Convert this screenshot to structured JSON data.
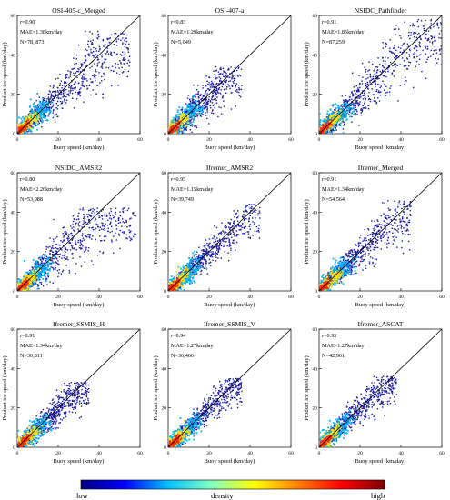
{
  "figure": {
    "colorbar": {
      "low_label": "low",
      "mid_label": "density",
      "high_label": "high",
      "colors": [
        "#00007f",
        "#0000ff",
        "#00bfff",
        "#7fffbf",
        "#ffff00",
        "#ff7f00",
        "#ff0000",
        "#7f0000"
      ]
    },
    "palette": {
      "sparse": "#1a1aa8",
      "mid": "#00b4ff",
      "dense": "#ffe000",
      "peak": "#ff2a00",
      "line": "#000000"
    }
  },
  "chart_data": [
    {
      "type": "scatter",
      "title": "OSI-405-c_Merged",
      "xlabel": "Buoy speed (km/day)",
      "ylabel": "Product ice speed (km/day)",
      "xlim": [
        0,
        60
      ],
      "ylim": [
        0,
        60
      ],
      "xticks": [
        "0",
        "20",
        "40",
        "60"
      ],
      "yticks": [
        "0",
        "20",
        "40",
        "60"
      ],
      "stats": {
        "r": "r=0.90",
        "mae": "MAE=1.38km/day",
        "n": "N=78, 873"
      },
      "max_x": 55,
      "max_y": 52,
      "spread": 0.34,
      "reference_line": "1:1"
    },
    {
      "type": "scatter",
      "title": "OSI-407-a",
      "xlabel": "Buoy speed (km/day)",
      "ylabel": "Product ice speed (km/day)",
      "xlim": [
        0,
        60
      ],
      "ylim": [
        0,
        60
      ],
      "xticks": [
        "0",
        "20",
        "40",
        "60"
      ],
      "yticks": [
        "0",
        "20",
        "40",
        "60"
      ],
      "stats": {
        "r": "r=0.83",
        "mae": "MAE=1.29km/day",
        "n": "N=5,049"
      },
      "max_x": 36,
      "max_y": 34,
      "spread": 0.4,
      "reference_line": "1:1"
    },
    {
      "type": "scatter",
      "title": "NSIDC_Pathfinder",
      "xlabel": "Buoy speed (km/day)",
      "ylabel": "Product ice speed (km/day)",
      "xlim": [
        0,
        60
      ],
      "ylim": [
        0,
        60
      ],
      "xticks": [
        "0",
        "20",
        "40",
        "60"
      ],
      "yticks": [
        "0",
        "20",
        "40",
        "60"
      ],
      "stats": {
        "r": "r=0.91",
        "mae": "MAE=1.85km/day",
        "n": "N=87,259"
      },
      "max_x": 60,
      "max_y": 58,
      "spread": 0.36,
      "reference_line": "1:1"
    },
    {
      "type": "scatter",
      "title": "NSIDC_AMSR2",
      "xlabel": "Buoy speed (km/day)",
      "ylabel": "Product ice speed (km/day)",
      "xlim": [
        0,
        60
      ],
      "ylim": [
        0,
        60
      ],
      "xticks": [
        "0",
        "20",
        "40",
        "60"
      ],
      "yticks": [
        "0",
        "20",
        "40",
        "60"
      ],
      "stats": {
        "r": "r=0.80",
        "mae": "MAE=2.26km/day",
        "n": "N=53,988"
      },
      "max_x": 58,
      "max_y": 42,
      "spread": 0.42,
      "reference_line": "1:1"
    },
    {
      "type": "scatter",
      "title": "Ifremer_AMSR2",
      "xlabel": "Buoy speed (km/day)",
      "ylabel": "Product ice speed (km/day)",
      "xlim": [
        0,
        60
      ],
      "ylim": [
        0,
        60
      ],
      "xticks": [
        "0",
        "20",
        "40",
        "60"
      ],
      "yticks": [
        "0",
        "20",
        "40",
        "60"
      ],
      "stats": {
        "r": "r=0.95",
        "mae": "MAE=1.15km/day",
        "n": "N=39,749"
      },
      "max_x": 45,
      "max_y": 44,
      "spread": 0.22,
      "reference_line": "1:1"
    },
    {
      "type": "scatter",
      "title": "Ifremer_Merged",
      "xlabel": "Buoy speed (km/day)",
      "ylabel": "Product ice speed (km/day)",
      "xlim": [
        0,
        60
      ],
      "ylim": [
        0,
        60
      ],
      "xticks": [
        "0",
        "20",
        "40",
        "60"
      ],
      "yticks": [
        "0",
        "20",
        "40",
        "60"
      ],
      "stats": {
        "r": "r=0.91",
        "mae": "MAE=1.34km/day",
        "n": "N=54,564"
      },
      "max_x": 45,
      "max_y": 46,
      "spread": 0.28,
      "reference_line": "1:1"
    },
    {
      "type": "scatter",
      "title": "Ifremer_SSMIS_H",
      "xlabel": "Buoy speed (km/day)",
      "ylabel": "Product ice speed (km/day)",
      "xlim": [
        0,
        60
      ],
      "ylim": [
        0,
        60
      ],
      "xticks": [
        "0",
        "20",
        "40",
        "60"
      ],
      "yticks": [
        "0",
        "20",
        "40",
        "60"
      ],
      "stats": {
        "r": "r=0.91",
        "mae": "MAE=1.34km/day",
        "n": "N=30,811"
      },
      "max_x": 35,
      "max_y": 33,
      "spread": 0.28,
      "reference_line": "1:1"
    },
    {
      "type": "scatter",
      "title": "Ifremer_SSMIS_V",
      "xlabel": "Buoy speed (km/day)",
      "ylabel": "Product ice speed (km/day)",
      "xlim": [
        0,
        60
      ],
      "ylim": [
        0,
        60
      ],
      "xticks": [
        "0",
        "20",
        "40",
        "60"
      ],
      "yticks": [
        "0",
        "20",
        "40",
        "60"
      ],
      "stats": {
        "r": "r=0.94",
        "mae": "MAE=1.27km/day",
        "n": "N=36,466"
      },
      "max_x": 36,
      "max_y": 35,
      "spread": 0.24,
      "reference_line": "1:1"
    },
    {
      "type": "scatter",
      "title": "Ifremer_ASCAT",
      "xlabel": "Buoy speed (km/day)",
      "ylabel": "Product ice speed (km/day)",
      "xlim": [
        0,
        60
      ],
      "ylim": [
        0,
        60
      ],
      "xticks": [
        "0",
        "20",
        "40",
        "60"
      ],
      "yticks": [
        "0",
        "20",
        "40",
        "60"
      ],
      "stats": {
        "r": "r=0.93",
        "mae": "MAE=1.27km/day",
        "n": "N=42,961"
      },
      "max_x": 38,
      "max_y": 36,
      "spread": 0.24,
      "reference_line": "1:1"
    }
  ]
}
